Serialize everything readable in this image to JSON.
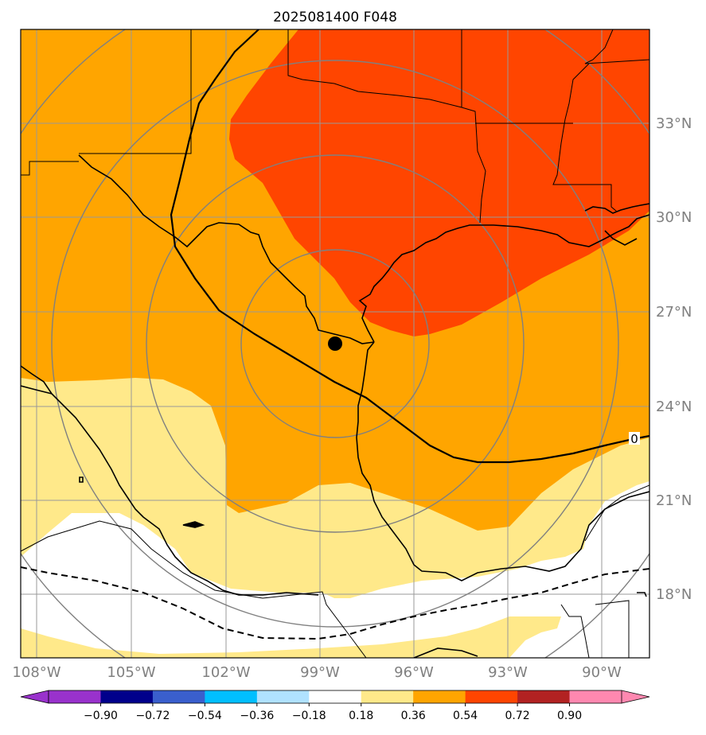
{
  "title": "2025081400 F048",
  "map": {
    "lon_labels": [
      "108°W",
      "105°W",
      "102°W",
      "99°W",
      "96°W",
      "93°W",
      "90°W"
    ],
    "lat_labels": [
      "33°N",
      "30°N",
      "27°N",
      "24°N",
      "21°N",
      "18°N"
    ],
    "contour_label": "0",
    "center_marker": "storm-center-dot",
    "fill_colors": {
      "band_0.18_0.36": "#ffe98a",
      "band_0.36_0.54": "#ffa500",
      "band_0.54_0.72": "#ff4500",
      "outside": "#ffffff"
    },
    "line_colors": {
      "coast": "#000000",
      "grid": "#999999",
      "range_rings": "#808080"
    }
  },
  "colorbar": {
    "ticks": [
      "−0.90",
      "−0.72",
      "−0.54",
      "−0.36",
      "−0.18",
      "0.18",
      "0.36",
      "0.54",
      "0.72",
      "0.90"
    ],
    "colors": [
      "#9932cc",
      "#00008b",
      "#3a5fcd",
      "#00bfff",
      "#b0e2ff",
      "#ffffff",
      "#ffe98a",
      "#ffa500",
      "#ff4500",
      "#b22222",
      "#ff88b0",
      "#ff88b0"
    ],
    "low_extension_color": "#9932cc",
    "high_extension_color": "#ff88b0"
  }
}
